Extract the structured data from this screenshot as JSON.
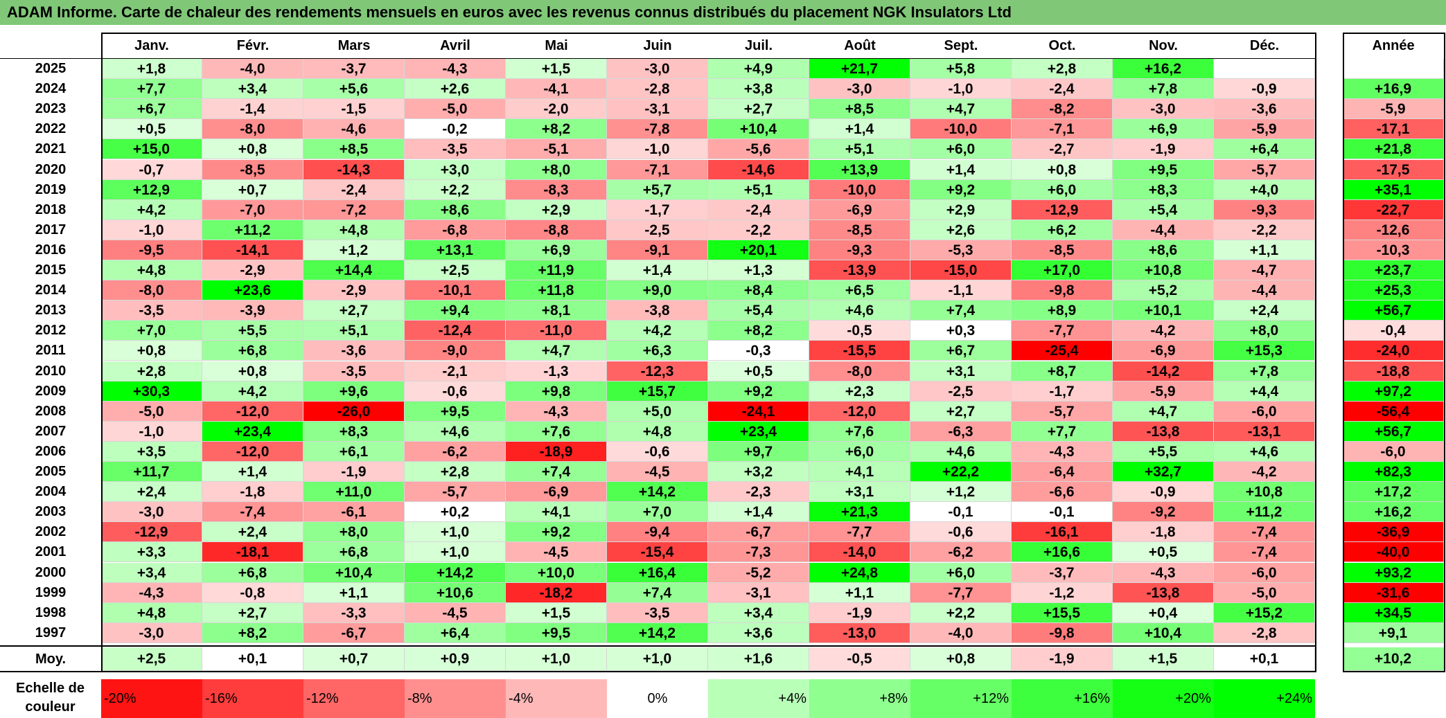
{
  "title": "ADAM Informe. Carte de chaleur des rendements mensuels en euros avec les revenus connus distribués du placement NGK Insulators Ltd",
  "chart_data": {
    "type": "heatmap",
    "title": "ADAM Informe. Carte de chaleur des rendements mensuels en euros avec les revenus connus distribués du placement NGK Insulators Ltd",
    "columns": [
      "Janv.",
      "Févr.",
      "Mars",
      "Avril",
      "Mai",
      "Juin",
      "Juil.",
      "Août",
      "Sept.",
      "Oct.",
      "Nov.",
      "Déc."
    ],
    "annual_header": "Année",
    "rows": [
      {
        "year": "2025",
        "values": [
          "+1,8",
          "-4,0",
          "-3,7",
          "-4,3",
          "+1,5",
          "-3,0",
          "+4,9",
          "+21,7",
          "+5,8",
          "+2,8",
          "+16,2",
          ""
        ],
        "annual": ""
      },
      {
        "year": "2024",
        "values": [
          "+7,7",
          "+3,4",
          "+5,6",
          "+2,6",
          "-4,1",
          "-2,8",
          "+3,8",
          "-3,0",
          "-1,0",
          "-2,4",
          "+7,8",
          "-0,9"
        ],
        "annual": "+16,9"
      },
      {
        "year": "2023",
        "values": [
          "+6,7",
          "-1,4",
          "-1,5",
          "-5,0",
          "-2,0",
          "-3,1",
          "+2,7",
          "+8,5",
          "+4,7",
          "-8,2",
          "-3,0",
          "-3,6"
        ],
        "annual": "-5,9"
      },
      {
        "year": "2022",
        "values": [
          "+0,5",
          "-8,0",
          "-4,6",
          "-0,2",
          "+8,2",
          "-7,8",
          "+10,4",
          "+1,4",
          "-10,0",
          "-7,1",
          "+6,9",
          "-5,9"
        ],
        "annual": "-17,1"
      },
      {
        "year": "2021",
        "values": [
          "+15,0",
          "+0,8",
          "+8,5",
          "-3,5",
          "-5,1",
          "-1,0",
          "-5,6",
          "+5,1",
          "+6,0",
          "-2,7",
          "-1,9",
          "+6,4"
        ],
        "annual": "+21,8"
      },
      {
        "year": "2020",
        "values": [
          "-0,7",
          "-8,5",
          "-14,3",
          "+3,0",
          "+8,0",
          "-7,1",
          "-14,6",
          "+13,9",
          "+1,4",
          "+0,8",
          "+9,5",
          "-5,7"
        ],
        "annual": "-17,5"
      },
      {
        "year": "2019",
        "values": [
          "+12,9",
          "+0,7",
          "-2,4",
          "+2,2",
          "-8,3",
          "+5,7",
          "+5,1",
          "-10,0",
          "+9,2",
          "+6,0",
          "+8,3",
          "+4,0"
        ],
        "annual": "+35,1"
      },
      {
        "year": "2018",
        "values": [
          "+4,2",
          "-7,0",
          "-7,2",
          "+8,6",
          "+2,9",
          "-1,7",
          "-2,4",
          "-6,9",
          "+2,9",
          "-12,9",
          "+5,4",
          "-9,3"
        ],
        "annual": "-22,7"
      },
      {
        "year": "2017",
        "values": [
          "-1,0",
          "+11,2",
          "+4,8",
          "-6,8",
          "-8,8",
          "-2,5",
          "-2,2",
          "-8,5",
          "+2,6",
          "+6,2",
          "-4,4",
          "-2,2"
        ],
        "annual": "-12,6"
      },
      {
        "year": "2016",
        "values": [
          "-9,5",
          "-14,1",
          "+1,2",
          "+13,1",
          "+6,9",
          "-9,1",
          "+20,1",
          "-9,3",
          "-5,3",
          "-8,5",
          "+8,6",
          "+1,1"
        ],
        "annual": "-10,3"
      },
      {
        "year": "2015",
        "values": [
          "+4,8",
          "-2,9",
          "+14,4",
          "+2,5",
          "+11,9",
          "+1,4",
          "+1,3",
          "-13,9",
          "-15,0",
          "+17,0",
          "+10,8",
          "-4,7"
        ],
        "annual": "+23,7"
      },
      {
        "year": "2014",
        "values": [
          "-8,0",
          "+23,6",
          "-2,9",
          "-10,1",
          "+11,8",
          "+9,0",
          "+8,4",
          "+6,5",
          "-1,1",
          "-9,8",
          "+5,2",
          "-4,4"
        ],
        "annual": "+25,3"
      },
      {
        "year": "2013",
        "values": [
          "-3,5",
          "-3,9",
          "+2,7",
          "+9,4",
          "+8,1",
          "-3,8",
          "+5,4",
          "+4,6",
          "+7,4",
          "+8,9",
          "+10,1",
          "+2,4"
        ],
        "annual": "+56,7"
      },
      {
        "year": "2012",
        "values": [
          "+7,0",
          "+5,5",
          "+5,1",
          "-12,4",
          "-11,0",
          "+4,2",
          "+8,2",
          "-0,5",
          "+0,3",
          "-7,7",
          "-4,2",
          "+8,0"
        ],
        "annual": "-0,4"
      },
      {
        "year": "2011",
        "values": [
          "+0,8",
          "+6,8",
          "-3,6",
          "-9,0",
          "+4,7",
          "+6,3",
          "-0,3",
          "-15,5",
          "+6,7",
          "-25,4",
          "-6,9",
          "+15,3"
        ],
        "annual": "-24,0"
      },
      {
        "year": "2010",
        "values": [
          "+2,8",
          "+0,8",
          "-3,5",
          "-2,1",
          "-1,3",
          "-12,3",
          "+0,5",
          "-8,0",
          "+3,1",
          "+8,7",
          "-14,2",
          "+7,8"
        ],
        "annual": "-18,8"
      },
      {
        "year": "2009",
        "values": [
          "+30,3",
          "+4,2",
          "+9,6",
          "-0,6",
          "+9,8",
          "+15,7",
          "+9,2",
          "+2,3",
          "-2,5",
          "-1,7",
          "-5,9",
          "+4,4"
        ],
        "annual": "+97,2"
      },
      {
        "year": "2008",
        "values": [
          "-5,0",
          "-12,0",
          "-26,0",
          "+9,5",
          "-4,3",
          "+5,0",
          "-24,1",
          "-12,0",
          "+2,7",
          "-5,7",
          "+4,7",
          "-6,0"
        ],
        "annual": "-56,4"
      },
      {
        "year": "2007",
        "values": [
          "-1,0",
          "+23,4",
          "+8,3",
          "+4,6",
          "+7,6",
          "+4,8",
          "+23,4",
          "+7,6",
          "-6,3",
          "+7,7",
          "-13,8",
          "-13,1"
        ],
        "annual": "+56,7"
      },
      {
        "year": "2006",
        "values": [
          "+3,5",
          "-12,0",
          "+6,1",
          "-6,2",
          "-18,9",
          "-0,6",
          "+9,7",
          "+6,0",
          "+4,6",
          "-4,3",
          "+5,5",
          "+4,6"
        ],
        "annual": "-6,0"
      },
      {
        "year": "2005",
        "values": [
          "+11,7",
          "+1,4",
          "-1,9",
          "+2,8",
          "+7,4",
          "-4,5",
          "+3,2",
          "+4,1",
          "+22,2",
          "-6,4",
          "+32,7",
          "-4,2"
        ],
        "annual": "+82,3"
      },
      {
        "year": "2004",
        "values": [
          "+2,4",
          "-1,8",
          "+11,0",
          "-5,7",
          "-6,9",
          "+14,2",
          "-2,3",
          "+3,1",
          "+1,2",
          "-6,6",
          "-0,9",
          "+10,8"
        ],
        "annual": "+17,2"
      },
      {
        "year": "2003",
        "values": [
          "-3,0",
          "-7,4",
          "-6,1",
          "+0,2",
          "+4,1",
          "+7,0",
          "+1,4",
          "+21,3",
          "-0,1",
          "-0,1",
          "-9,2",
          "+11,2"
        ],
        "annual": "+16,2"
      },
      {
        "year": "2002",
        "values": [
          "-12,9",
          "+2,4",
          "+8,0",
          "+1,0",
          "+9,2",
          "-9,4",
          "-6,7",
          "-7,7",
          "-0,6",
          "-16,1",
          "-1,8",
          "-7,4"
        ],
        "annual": "-36,9"
      },
      {
        "year": "2001",
        "values": [
          "+3,3",
          "-18,1",
          "+6,8",
          "+1,0",
          "-4,5",
          "-15,4",
          "-7,3",
          "-14,0",
          "-6,2",
          "+16,6",
          "+0,5",
          "-7,4"
        ],
        "annual": "-40,0"
      },
      {
        "year": "2000",
        "values": [
          "+3,4",
          "+6,8",
          "+10,4",
          "+14,2",
          "+10,0",
          "+16,4",
          "-5,2",
          "+24,8",
          "+6,0",
          "-3,7",
          "-4,3",
          "-6,0"
        ],
        "annual": "+93,2"
      },
      {
        "year": "1999",
        "values": [
          "-4,3",
          "-0,8",
          "+1,1",
          "+10,6",
          "-18,2",
          "+7,4",
          "-3,1",
          "+1,1",
          "-7,7",
          "-1,2",
          "-13,8",
          "-5,0"
        ],
        "annual": "-31,6"
      },
      {
        "year": "1998",
        "values": [
          "+4,8",
          "+2,7",
          "-3,3",
          "-4,5",
          "+1,5",
          "-3,5",
          "+3,4",
          "-1,9",
          "+2,2",
          "+15,5",
          "+0,4",
          "+15,2"
        ],
        "annual": "+34,5"
      },
      {
        "year": "1997",
        "values": [
          "-3,0",
          "+8,2",
          "-6,7",
          "+6,4",
          "+9,5",
          "+14,2",
          "+3,6",
          "-13,0",
          "-4,0",
          "-9,8",
          "+10,4",
          "-2,8"
        ],
        "annual": "+9,1"
      }
    ],
    "average": {
      "label": "Moy.",
      "values": [
        "+2,5",
        "+0,1",
        "+0,7",
        "+0,9",
        "+1,0",
        "+1,0",
        "+1,6",
        "-0,5",
        "+0,8",
        "-1,9",
        "+1,5",
        "+0,1"
      ],
      "annual": "+10,2"
    },
    "legend": {
      "label": "Echelle de couleur",
      "steps": [
        {
          "label": "-20%",
          "value": -20
        },
        {
          "label": "-16%",
          "value": -16
        },
        {
          "label": "-12%",
          "value": -12
        },
        {
          "label": "-8%",
          "value": -8
        },
        {
          "label": "-4%",
          "value": -4
        },
        {
          "label": "0%",
          "value": 0
        },
        {
          "label": "+4%",
          "value": 4
        },
        {
          "label": "+8%",
          "value": 8
        },
        {
          "label": "+12%",
          "value": 12
        },
        {
          "label": "+16%",
          "value": 16
        },
        {
          "label": "+20%",
          "value": 20
        },
        {
          "label": "+24%",
          "value": 24
        }
      ]
    },
    "colors": {
      "max_red": "#ff0000",
      "max_green": "#00ff00",
      "neutral": "#ffffff",
      "title_bar": "#80c878"
    }
  }
}
